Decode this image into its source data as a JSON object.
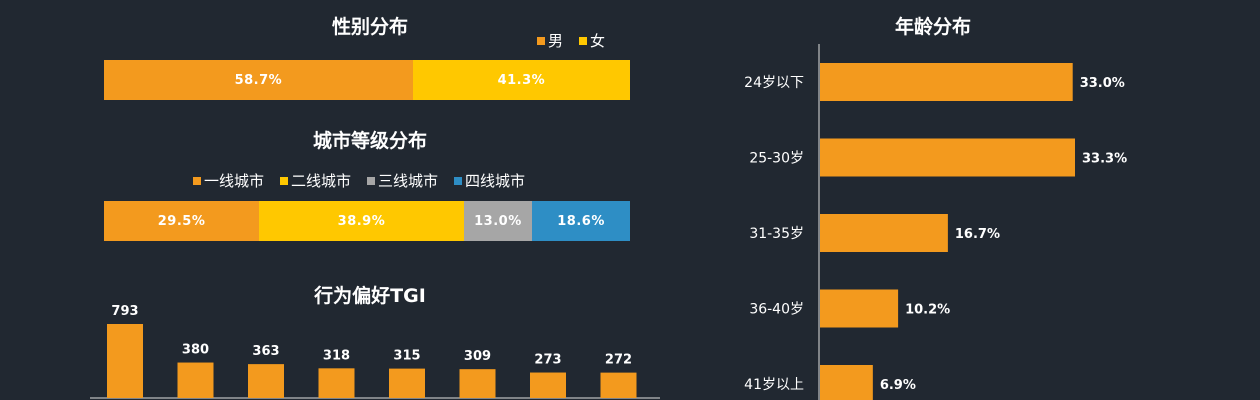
{
  "colors": {
    "background": "#212831",
    "orange": "#f39a1e",
    "yellow": "#ffc800",
    "gray": "#a6a6a6",
    "blue": "#2e8ec5"
  },
  "chart_data": [
    {
      "type": "bar",
      "orientation": "horizontal-stacked-100",
      "title": "性别分布",
      "legend": "top-right",
      "series": [
        {
          "name": "男",
          "value": 58.7,
          "label": "58.7%",
          "color": "#f39a1e"
        },
        {
          "name": "女",
          "value": 41.3,
          "label": "41.3%",
          "color": "#ffc800"
        }
      ]
    },
    {
      "type": "bar",
      "orientation": "horizontal-stacked-100",
      "title": "城市等级分布",
      "legend": "top-center",
      "series": [
        {
          "name": "一线城市",
          "value": 29.5,
          "label": "29.5%",
          "color": "#f39a1e"
        },
        {
          "name": "二线城市",
          "value": 38.9,
          "label": "38.9%",
          "color": "#ffc800"
        },
        {
          "name": "三线城市",
          "value": 13.0,
          "label": "13.0%",
          "color": "#a6a6a6"
        },
        {
          "name": "四线城市",
          "value": 18.6,
          "label": "18.6%",
          "color": "#2e8ec5"
        }
      ]
    },
    {
      "type": "bar",
      "orientation": "vertical",
      "title": "行为偏好TGI",
      "values": [
        793,
        380,
        363,
        318,
        315,
        309,
        273,
        272
      ],
      "labels": [
        "793",
        "380",
        "363",
        "318",
        "315",
        "309",
        "273",
        "272"
      ],
      "color": "#f39a1e"
    },
    {
      "type": "bar",
      "orientation": "horizontal",
      "title": "年龄分布",
      "categories": [
        "24岁以下",
        "25-30岁",
        "31-35岁",
        "36-40岁",
        "41岁以上"
      ],
      "values": [
        33.0,
        33.3,
        16.7,
        10.2,
        6.9
      ],
      "labels": [
        "33.0%",
        "33.3%",
        "16.7%",
        "10.2%",
        "6.9%"
      ],
      "color": "#f39a1e"
    }
  ]
}
